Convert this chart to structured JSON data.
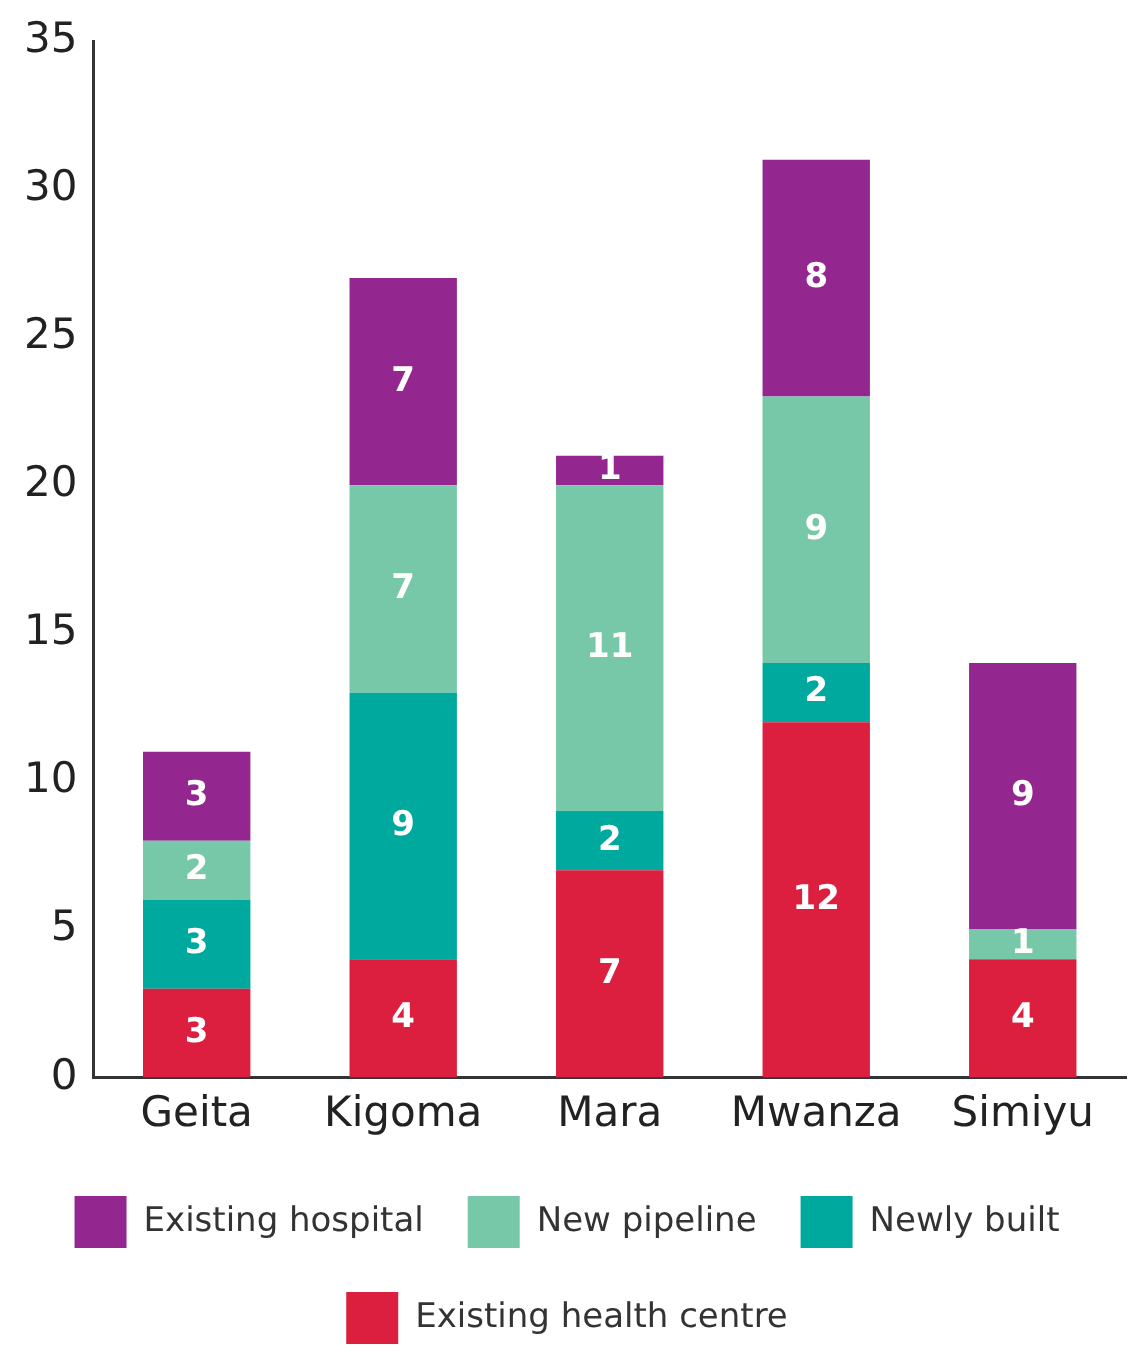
{
  "chart_data": {
    "type": "bar",
    "stacked": true,
    "categories": [
      "Geita",
      "Kigoma",
      "Mara",
      "Mwanza",
      "Simiyu"
    ],
    "series": [
      {
        "name": "Existing health centre",
        "color": "#dc1f3f",
        "values": [
          3,
          4,
          7,
          12,
          4
        ]
      },
      {
        "name": "Newly built",
        "color": "#00a99d",
        "values": [
          3,
          9,
          2,
          2,
          null
        ]
      },
      {
        "name": "New pipeline",
        "color": "#76c8a8",
        "values": [
          2,
          7,
          11,
          9,
          1
        ]
      },
      {
        "name": "Existing hospital",
        "color": "#93278f",
        "values": [
          3,
          7,
          1,
          8,
          9
        ]
      }
    ],
    "ylim": [
      0,
      35
    ],
    "yticks": [
      0,
      5,
      10,
      15,
      20,
      25,
      30,
      35
    ],
    "grid": false,
    "legend": "bottom",
    "data_labels": true
  }
}
